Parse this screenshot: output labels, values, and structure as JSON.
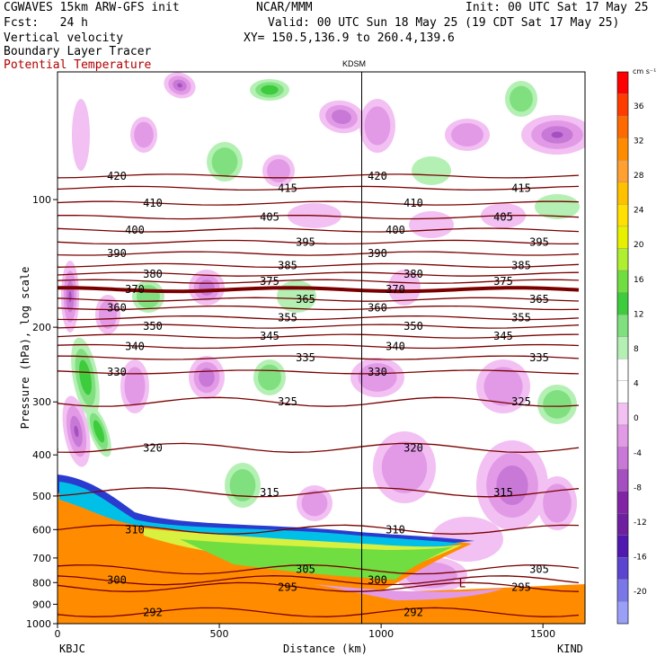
{
  "header": {
    "line1_left": "CGWAVES 15km ARW-GFS init",
    "line1_mid": "NCAR/MMM",
    "line1_right": "Init: 00 UTC Sat 17 May 25",
    "line2_left": "Fcst:   24 h",
    "line2_right": "Valid: 00 UTC Sun 18 May 25 (19 CDT Sat 17 May 25)",
    "line3_left": "Vertical velocity",
    "line3_right": "XY= 150.5,136.9 to 260.4,139.6",
    "line4_left": "Boundary Layer Tracer",
    "line5_left": "Potential Temperature"
  },
  "colors": {
    "theta_contour": "#7a0000",
    "axis": "#000000",
    "potential_temperature_label": "#b00000"
  },
  "chart_data": {
    "type": "heatmap",
    "title": "",
    "xlabel": "Distance (km)",
    "ylabel": "Pressure (hPa), log scale",
    "x_ticks": [
      0,
      500,
      1000,
      1500
    ],
    "xlim": [
      0,
      1630
    ],
    "y_scale": "log",
    "y_ticks": [
      100,
      200,
      300,
      400,
      500,
      600,
      700,
      800,
      900,
      1000
    ],
    "ylim": [
      1000,
      50
    ],
    "station_top": "KDSM",
    "station_top_km": 940,
    "station_left": "KBJC",
    "station_right": "KIND",
    "colorbar": {
      "unit": "cm s⁻¹",
      "ticks": [
        36,
        32,
        28,
        24,
        20,
        16,
        12,
        8,
        4,
        0,
        -4,
        -8,
        -12,
        -16,
        -20
      ],
      "colors": [
        "#ff0000",
        "#ff3c00",
        "#ff6a00",
        "#ff8c00",
        "#ffa030",
        "#ffc000",
        "#ffe000",
        "#e6f000",
        "#b0ee30",
        "#70dd40",
        "#3ccc3c",
        "#80e080",
        "#b4f0b4",
        "#ffffff",
        "#ffffff",
        "#f2c0f2",
        "#e29ae6",
        "#c878d6",
        "#a550c0",
        "#8224a6",
        "#6e20a0",
        "#5018b0",
        "#5a44d0",
        "#7a78e8",
        "#9aa0f8"
      ]
    },
    "theta_contours": [
      {
        "label": "420",
        "p": 88
      },
      {
        "label": "415",
        "p": 94
      },
      {
        "label": "410",
        "p": 102
      },
      {
        "label": "405",
        "p": 110
      },
      {
        "label": "400",
        "p": 118
      },
      {
        "label": "395",
        "p": 126
      },
      {
        "label": "390",
        "p": 134
      },
      {
        "label": "385",
        "p": 143
      },
      {
        "label": "380",
        "p": 150
      },
      {
        "label": "375",
        "p": 156
      },
      {
        "label": "370",
        "p": 163
      },
      {
        "label": "365",
        "p": 172
      },
      {
        "label": "360",
        "p": 180
      },
      {
        "label": "355",
        "p": 190
      },
      {
        "label": "350",
        "p": 199
      },
      {
        "label": "345",
        "p": 210
      },
      {
        "label": "340",
        "p": 222
      },
      {
        "label": "335",
        "p": 236
      },
      {
        "label": "330",
        "p": 255
      },
      {
        "label": "325",
        "p": 300
      },
      {
        "label": "320",
        "p": 385
      },
      {
        "label": "315",
        "p": 490
      },
      {
        "label": "310",
        "p": 600
      },
      {
        "label": "305",
        "p": 745
      },
      {
        "label": "300",
        "p": 790
      },
      {
        "label": "295",
        "p": 820
      },
      {
        "label": "292",
        "p": 940
      }
    ],
    "low_marker": "L"
  }
}
